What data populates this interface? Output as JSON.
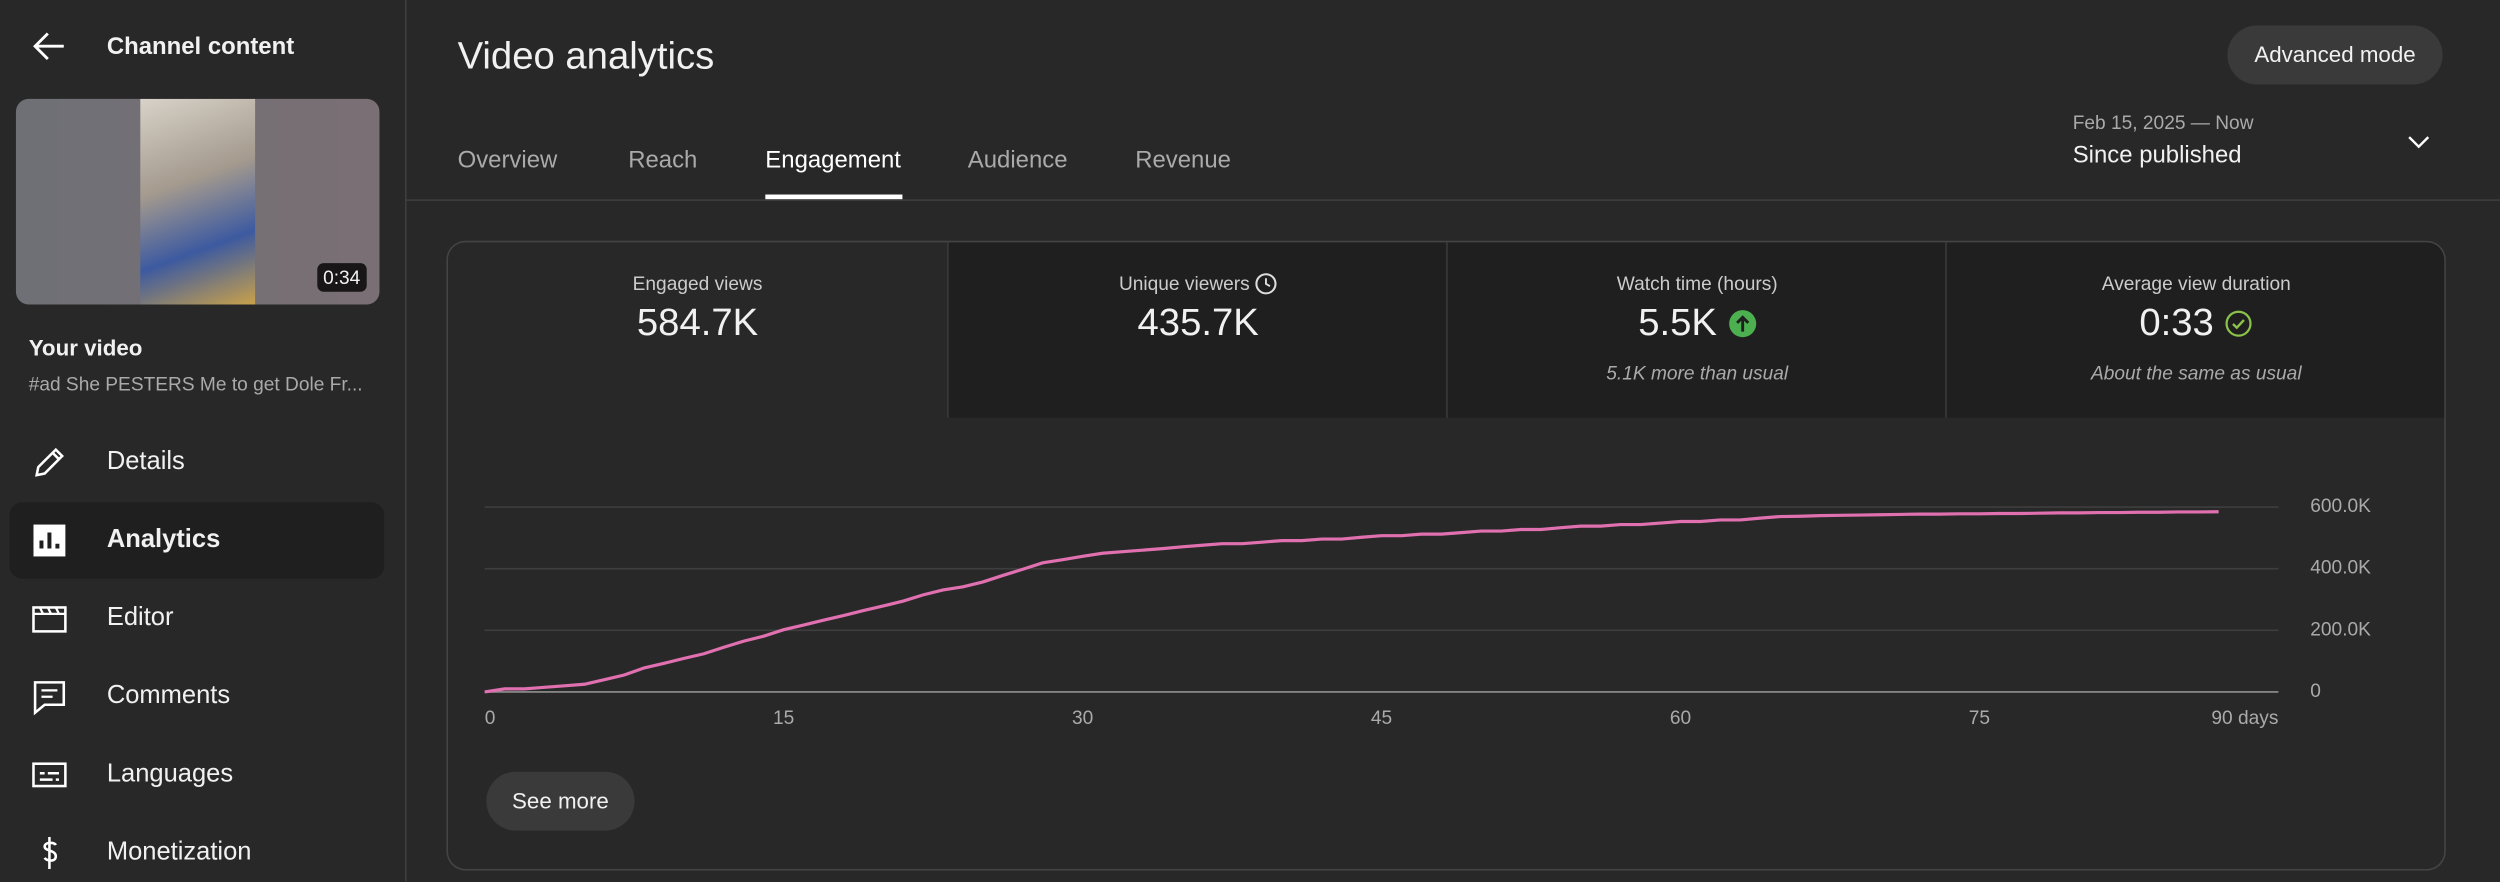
{
  "sidebar": {
    "back_title": "Channel content",
    "duration": "0:34",
    "video_label": "Your video",
    "video_title": "#ad She PESTERS Me to get Dole Fr...",
    "nav": [
      "Details",
      "Analytics",
      "Editor",
      "Comments",
      "Languages",
      "Monetization"
    ]
  },
  "header": {
    "title": "Video analytics",
    "button": "Advanced mode",
    "date_range": "Feb 15, 2025 — Now",
    "period": "Since published"
  },
  "tabs": [
    "Overview",
    "Reach",
    "Engagement",
    "Audience",
    "Revenue"
  ],
  "metrics": [
    {
      "label": "Engaged views",
      "value": "584.7K"
    },
    {
      "label": "Unique viewers",
      "value": "435.7K"
    },
    {
      "label": "Watch time (hours)",
      "value": "5.5K",
      "note": "5.1K more than usual"
    },
    {
      "label": "Average view duration",
      "value": "0:33",
      "note": "About the same as usual"
    }
  ],
  "see_more": "See more",
  "chart_data": {
    "type": "line",
    "x": [
      0,
      1,
      2,
      3,
      4,
      5,
      6,
      7,
      8,
      9,
      10,
      11,
      12,
      13,
      14,
      15,
      16,
      17,
      18,
      19,
      20,
      21,
      22,
      23,
      24,
      25,
      26,
      27,
      28,
      29,
      30,
      31,
      32,
      33,
      34,
      35,
      36,
      37,
      38,
      39,
      40,
      41,
      42,
      43,
      44,
      45,
      46,
      47,
      48,
      49,
      50,
      51,
      52,
      53,
      54,
      55,
      56,
      57,
      58,
      59,
      60,
      61,
      62,
      63,
      64,
      65,
      66,
      67,
      68,
      69,
      70,
      71,
      72,
      73,
      74,
      75,
      76,
      77,
      78,
      79,
      80,
      81,
      82,
      83,
      84,
      85,
      86,
      87
    ],
    "series": [
      {
        "name": "Engaged views",
        "color": "#e070b0",
        "values": [
          0,
          10000,
          10000,
          15000,
          20000,
          25000,
          40000,
          55000,
          78000,
          93000,
          109000,
          124000,
          145000,
          165000,
          181000,
          202000,
          217000,
          233000,
          248000,
          264000,
          279000,
          295000,
          315000,
          331000,
          341000,
          357000,
          378000,
          398000,
          419000,
          429000,
          440000,
          450000,
          455000,
          460000,
          465000,
          471000,
          476000,
          481000,
          481000,
          486000,
          491000,
          491000,
          496000,
          496000,
          502000,
          507000,
          507000,
          512000,
          512000,
          517000,
          522000,
          522000,
          527000,
          527000,
          533000,
          538000,
          538000,
          543000,
          543000,
          548000,
          553000,
          553000,
          558000,
          558000,
          564000,
          569000,
          570000,
          572000,
          573000,
          574000,
          575000,
          576000,
          577000,
          577000,
          578000,
          578000,
          579000,
          579000,
          580000,
          581000,
          581000,
          582000,
          582000,
          583000,
          583000,
          584000,
          584000,
          584700
        ]
      }
    ],
    "xlim": [
      0,
      90
    ],
    "xticks": [
      0,
      15,
      30,
      45,
      60,
      75,
      {
        "value": 90,
        "label": "90 days"
      }
    ],
    "ylim": [
      0,
      600000
    ],
    "yticks": [
      0,
      {
        "value": 200000,
        "label": "200.0K"
      },
      {
        "value": 400000,
        "label": "400.0K"
      },
      {
        "value": 600000,
        "label": "600.0K"
      }
    ],
    "grid": true
  }
}
